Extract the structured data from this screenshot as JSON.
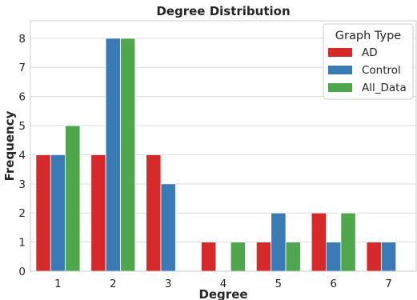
{
  "chart_data": {
    "type": "bar",
    "title": "Degree Distribution",
    "xlabel": "Degree",
    "ylabel": "Frequency",
    "categories": [
      "1",
      "2",
      "3",
      "4",
      "5",
      "6",
      "7"
    ],
    "ylim": [
      0,
      8.6
    ],
    "yticks": [
      "0",
      "1",
      "2",
      "3",
      "4",
      "5",
      "6",
      "7",
      "8"
    ],
    "grid": true,
    "legend": {
      "title": "Graph Type",
      "placement": "top-right"
    },
    "series": [
      {
        "name": "AD",
        "color": "#d62a2a",
        "values": [
          4,
          4,
          4,
          1,
          1,
          2,
          1
        ]
      },
      {
        "name": "Control",
        "color": "#3a7ab5",
        "values": [
          4,
          8,
          3,
          0,
          2,
          1,
          1
        ]
      },
      {
        "name": "All_Data",
        "color": "#4fa64d",
        "values": [
          5,
          8,
          0,
          1,
          1,
          2,
          0
        ]
      }
    ]
  }
}
